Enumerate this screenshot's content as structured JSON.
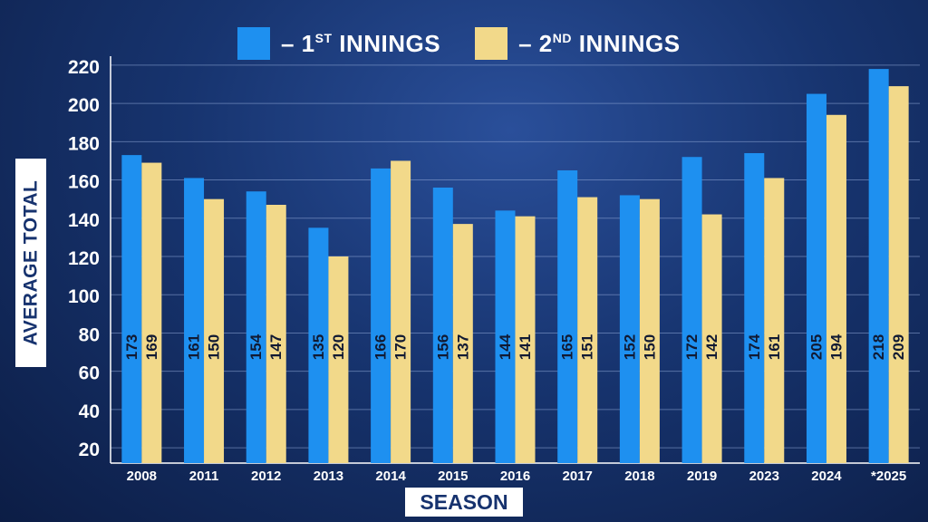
{
  "chart_data": {
    "type": "bar",
    "title": "",
    "xlabel": "SEASON",
    "ylabel": "AVERAGE TOTAL",
    "ylim": [
      12,
      228
    ],
    "yticks": [
      20,
      40,
      60,
      80,
      100,
      120,
      140,
      160,
      180,
      200,
      220
    ],
    "grid": true,
    "legend_position": "top",
    "categories": [
      "2008",
      "2011",
      "2012",
      "2013",
      "2014",
      "2015",
      "2016",
      "2017",
      "2018",
      "2019",
      "2023",
      "2024",
      "*2025"
    ],
    "series": [
      {
        "name": "1ST INNINGS",
        "legend_main": "– 1",
        "legend_sup": "ST",
        "legend_rest": " INNINGS",
        "color": "#1e90f0",
        "values": [
          173,
          161,
          154,
          135,
          166,
          156,
          144,
          165,
          152,
          172,
          174,
          205,
          218
        ],
        "labels": [
          "173",
          "161",
          "154",
          "135",
          "166",
          "156",
          "144",
          "165",
          "152",
          "172",
          "174",
          "205",
          "218"
        ]
      },
      {
        "name": "2ND INNINGS",
        "legend_main": "– 2",
        "legend_sup": "ND",
        "legend_rest": " INNINGS",
        "color": "#f2d98a",
        "values": [
          169,
          150,
          147,
          120,
          170,
          137,
          141,
          151,
          150,
          142,
          161,
          194,
          209
        ],
        "labels": [
          "169",
          "150",
          "147",
          "120",
          "170",
          "137",
          "141",
          "151",
          "150",
          "142",
          "161",
          "194",
          "209"
        ]
      }
    ]
  }
}
